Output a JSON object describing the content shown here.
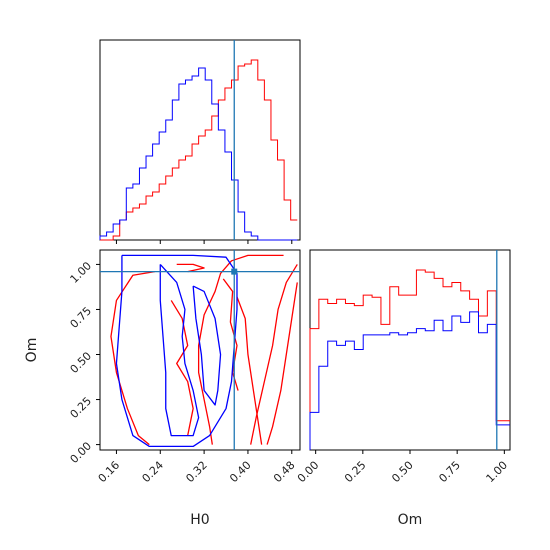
{
  "chart_data": {
    "type": "corner",
    "parameters": [
      "H0",
      "Om"
    ],
    "truths": {
      "H0": 0.375,
      "Om": 0.96
    },
    "truth_color": "#1f77b4",
    "series_colors": [
      "#ff0000",
      "#0000ff"
    ],
    "H0_marginal": {
      "xlim": [
        0.13,
        0.495
      ],
      "bins": [
        0.13,
        0.142,
        0.154,
        0.166,
        0.178,
        0.19,
        0.202,
        0.214,
        0.226,
        0.238,
        0.25,
        0.262,
        0.274,
        0.286,
        0.298,
        0.31,
        0.322,
        0.334,
        0.346,
        0.358,
        0.37,
        0.382,
        0.394,
        0.406,
        0.418,
        0.43,
        0.442,
        0.454,
        0.466,
        0.478,
        0.49
      ],
      "red": [
        0,
        0,
        0.02,
        0.1,
        0.14,
        0.16,
        0.18,
        0.22,
        0.24,
        0.28,
        0.32,
        0.36,
        0.4,
        0.42,
        0.48,
        0.52,
        0.55,
        0.62,
        0.7,
        0.76,
        0.8,
        0.87,
        0.88,
        0.9,
        0.8,
        0.7,
        0.5,
        0.4,
        0.2,
        0.1
      ],
      "blue": [
        0.02,
        0.04,
        0.08,
        0.1,
        0.26,
        0.28,
        0.36,
        0.42,
        0.48,
        0.54,
        0.6,
        0.7,
        0.78,
        0.8,
        0.82,
        0.86,
        0.8,
        0.68,
        0.55,
        0.44,
        0.3,
        0.14,
        0.04,
        0.02,
        0,
        0,
        0,
        0,
        0,
        0
      ]
    },
    "Om_marginal": {
      "xlim": [
        -0.03,
        1.03
      ],
      "bins": [
        -0.03,
        0.017,
        0.064,
        0.111,
        0.158,
        0.205,
        0.252,
        0.299,
        0.346,
        0.393,
        0.44,
        0.487,
        0.534,
        0.581,
        0.628,
        0.675,
        0.722,
        0.769,
        0.816,
        0.863,
        0.91,
        0.957,
        1.004,
        1.03
      ],
      "red": [
        0.58,
        0.72,
        0.7,
        0.72,
        0.7,
        0.69,
        0.74,
        0.73,
        0.6,
        0.78,
        0.74,
        0.74,
        0.86,
        0.85,
        0.82,
        0.78,
        0.8,
        0.76,
        0.72,
        0.64,
        0.76,
        0.14,
        0.14
      ],
      "blue": [
        0.18,
        0.4,
        0.52,
        0.5,
        0.52,
        0.48,
        0.55,
        0.55,
        0.55,
        0.56,
        0.55,
        0.56,
        0.58,
        0.57,
        0.62,
        0.57,
        0.64,
        0.61,
        0.66,
        0.56,
        0.6,
        0.12,
        0.12
      ]
    },
    "joint": {
      "xlim": [
        0.13,
        0.495
      ],
      "ylim": [
        -0.03,
        1.08
      ],
      "red_contours": [
        [
          [
            0.465,
            1.05
          ],
          [
            0.4,
            1.05
          ],
          [
            0.37,
            1.02
          ],
          [
            0.35,
            0.95
          ],
          [
            0.34,
            0.85
          ],
          [
            0.32,
            0.72
          ],
          [
            0.31,
            0.55
          ],
          [
            0.31,
            0.4
          ],
          [
            0.32,
            0.25
          ],
          [
            0.33,
            0.1
          ],
          [
            0.335,
            0.0
          ]
        ],
        [
          [
            0.23,
            0.96
          ],
          [
            0.19,
            0.94
          ],
          [
            0.16,
            0.8
          ],
          [
            0.15,
            0.6
          ],
          [
            0.16,
            0.4
          ],
          [
            0.18,
            0.2
          ],
          [
            0.2,
            0.05
          ],
          [
            0.22,
            0.0
          ]
        ],
        [
          [
            0.38,
            0.82
          ],
          [
            0.395,
            0.7
          ],
          [
            0.4,
            0.5
          ],
          [
            0.41,
            0.3
          ],
          [
            0.42,
            0.1
          ],
          [
            0.425,
            0.0
          ]
        ],
        [
          [
            0.49,
            1.0
          ],
          [
            0.47,
            0.9
          ],
          [
            0.455,
            0.75
          ],
          [
            0.445,
            0.55
          ],
          [
            0.43,
            0.35
          ],
          [
            0.415,
            0.15
          ],
          [
            0.405,
            0.0
          ]
        ],
        [
          [
            0.49,
            0.9
          ],
          [
            0.48,
            0.7
          ],
          [
            0.47,
            0.5
          ],
          [
            0.46,
            0.3
          ],
          [
            0.445,
            0.1
          ],
          [
            0.435,
            0.0
          ]
        ],
        [
          [
            0.26,
            0.8
          ],
          [
            0.28,
            0.7
          ],
          [
            0.29,
            0.55
          ],
          [
            0.27,
            0.45
          ],
          [
            0.29,
            0.35
          ],
          [
            0.3,
            0.2
          ],
          [
            0.29,
            0.05
          ]
        ],
        [
          [
            0.355,
            0.92
          ],
          [
            0.372,
            0.85
          ],
          [
            0.368,
            0.68
          ],
          [
            0.38,
            0.55
          ],
          [
            0.372,
            0.4
          ],
          [
            0.382,
            0.3
          ]
        ],
        [
          [
            0.27,
            1.0
          ],
          [
            0.3,
            1.0
          ],
          [
            0.32,
            0.98
          ],
          [
            0.29,
            0.96
          ]
        ]
      ],
      "blue_contours": [
        [
          [
            0.17,
            1.05
          ],
          [
            0.3,
            1.05
          ],
          [
            0.36,
            1.04
          ],
          [
            0.38,
            0.95
          ],
          [
            0.38,
            0.75
          ],
          [
            0.375,
            0.55
          ],
          [
            0.37,
            0.35
          ],
          [
            0.36,
            0.2
          ],
          [
            0.33,
            0.05
          ],
          [
            0.3,
            -0.01
          ],
          [
            0.22,
            -0.01
          ],
          [
            0.19,
            0.05
          ],
          [
            0.17,
            0.25
          ],
          [
            0.16,
            0.45
          ],
          [
            0.165,
            0.65
          ],
          [
            0.17,
            0.85
          ],
          [
            0.17,
            1.05
          ]
        ],
        [
          [
            0.24,
            1.0
          ],
          [
            0.27,
            0.9
          ],
          [
            0.285,
            0.75
          ],
          [
            0.28,
            0.6
          ],
          [
            0.285,
            0.45
          ],
          [
            0.3,
            0.3
          ],
          [
            0.31,
            0.15
          ],
          [
            0.3,
            0.05
          ],
          [
            0.26,
            0.05
          ],
          [
            0.25,
            0.2
          ],
          [
            0.25,
            0.4
          ],
          [
            0.245,
            0.6
          ],
          [
            0.24,
            0.8
          ],
          [
            0.24,
            1.0
          ]
        ],
        [
          [
            0.3,
            0.88
          ],
          [
            0.32,
            0.85
          ],
          [
            0.34,
            0.7
          ],
          [
            0.35,
            0.5
          ],
          [
            0.345,
            0.3
          ],
          [
            0.34,
            0.22
          ],
          [
            0.32,
            0.3
          ],
          [
            0.315,
            0.5
          ],
          [
            0.305,
            0.7
          ],
          [
            0.3,
            0.88
          ]
        ]
      ]
    },
    "axes": {
      "H0": {
        "label": "H0",
        "ticks": [
          0.16,
          0.24,
          0.32,
          0.4,
          0.48
        ],
        "tick_labels": [
          "0.16",
          "0.24",
          "0.32",
          "0.40",
          "0.48"
        ]
      },
      "Om": {
        "label": "Om",
        "ticks": [
          0.0,
          0.25,
          0.5,
          0.75,
          1.0
        ],
        "tick_labels": [
          "0.00",
          "0.25",
          "0.50",
          "0.75",
          "1.00"
        ]
      }
    }
  }
}
